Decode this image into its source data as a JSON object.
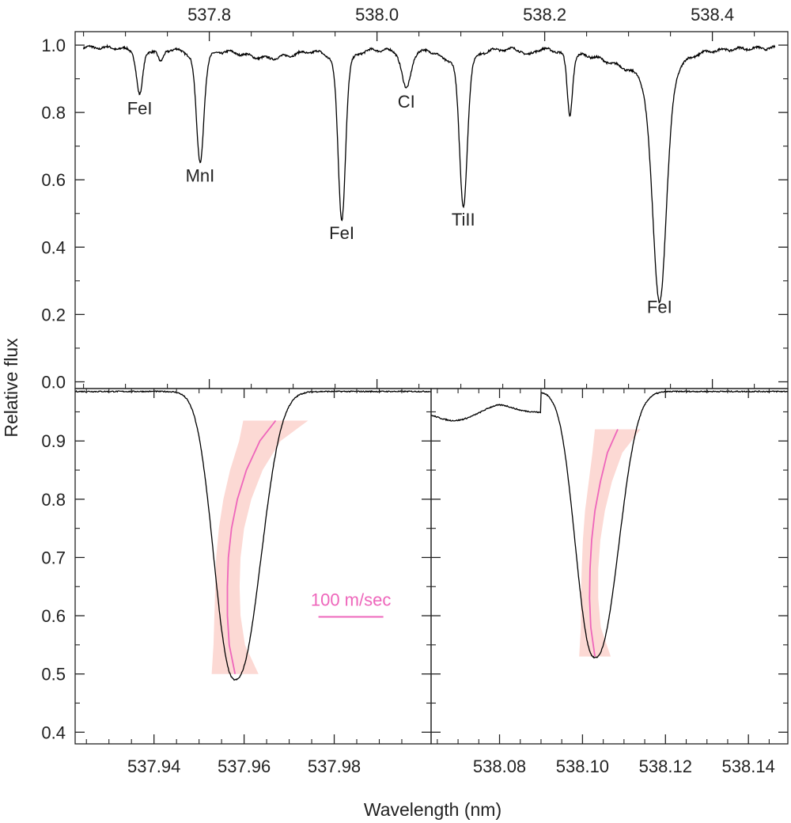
{
  "figure": {
    "ylabel": "Relative flux",
    "xlabel": "Wavelength (nm)"
  },
  "colors": {
    "spectrum": "#000000",
    "bisector": "#ee66bb",
    "bisector_band": "#fcd9d4",
    "axis": "#222222"
  },
  "chart_data": [
    {
      "type": "line",
      "panel": "top-overview",
      "xlim": [
        537.64,
        538.49
      ],
      "ylim": [
        -0.02,
        1.04
      ],
      "x_ticks": [
        "537.8",
        "538.0",
        "538.2",
        "538.4"
      ],
      "x_tick_values": [
        537.8,
        538.0,
        538.2,
        538.4
      ],
      "x_ticks_position": "top",
      "y_ticks": [
        "0.0",
        "0.2",
        "0.4",
        "0.6",
        "0.8",
        "1.0"
      ],
      "y_tick_values": [
        0.0,
        0.2,
        0.4,
        0.6,
        0.8,
        1.0
      ],
      "continuum": 1.0,
      "absorption_lines": [
        {
          "label": "FeI",
          "center": 537.717,
          "min_flux": 0.86,
          "width": 0.0035
        },
        {
          "label": "",
          "center": 537.742,
          "min_flux": 0.96,
          "width": 0.003
        },
        {
          "label": "MnI",
          "center": 537.789,
          "min_flux": 0.66,
          "width": 0.0042
        },
        {
          "label": "FeI",
          "center": 537.958,
          "min_flux": 0.49,
          "width": 0.0042
        },
        {
          "label": "CI",
          "center": 538.035,
          "min_flux": 0.88,
          "width": 0.005
        },
        {
          "label": "",
          "center": 538.08,
          "min_flux": 0.98,
          "width": 0.006
        },
        {
          "label": "TiII",
          "center": 538.103,
          "min_flux": 0.53,
          "width": 0.0045
        },
        {
          "label": "",
          "center": 538.18,
          "min_flux": 0.98,
          "width": 0.005
        },
        {
          "label": "",
          "center": 538.23,
          "min_flux": 0.81,
          "width": 0.003
        },
        {
          "label": "FeI",
          "center": 538.337,
          "min_flux": 0.27,
          "width": 0.008
        }
      ]
    },
    {
      "type": "line",
      "panel": "bottom-left-zoom",
      "xlim": [
        537.9225,
        538.0015
      ],
      "ylim": [
        0.38,
        0.99
      ],
      "x_ticks": [
        "537.94",
        "537.96",
        "537.98"
      ],
      "x_tick_values": [
        537.94,
        537.96,
        537.98
      ],
      "y_ticks": [
        "0.4",
        "0.5",
        "0.6",
        "0.7",
        "0.8",
        "0.9"
      ],
      "y_tick_values": [
        0.4,
        0.5,
        0.6,
        0.7,
        0.8,
        0.9
      ],
      "line": {
        "center": 537.958,
        "min_flux": 0.49,
        "continuum": 0.985
      },
      "bisector": {
        "flux": [
          0.5,
          0.55,
          0.6,
          0.65,
          0.7,
          0.75,
          0.8,
          0.85,
          0.9,
          0.935
        ],
        "wavelength": [
          537.958,
          537.9567,
          537.9563,
          537.9563,
          537.9565,
          537.9572,
          537.9585,
          537.9605,
          537.9635,
          537.967
        ],
        "band_halfwidth": [
          0.0052,
          0.0035,
          0.0029,
          0.0027,
          0.0027,
          0.0028,
          0.0031,
          0.0036,
          0.0046,
          0.0072
        ]
      },
      "scale_bar": {
        "label": "100 m/sec",
        "x_from": 537.9765,
        "x_to": 537.9909,
        "y": 0.598
      }
    },
    {
      "type": "line",
      "panel": "bottom-right-zoom",
      "xlim": [
        538.0635,
        538.1495
      ],
      "ylim": [
        0.38,
        0.99
      ],
      "x_ticks": [
        "538.08",
        "538.10",
        "538.12",
        "538.14"
      ],
      "x_tick_values": [
        538.08,
        538.1,
        538.12,
        538.14
      ],
      "line": {
        "center": 538.103,
        "min_flux": 0.528,
        "continuum": 0.985
      },
      "bisector": {
        "flux": [
          0.53,
          0.58,
          0.63,
          0.68,
          0.73,
          0.78,
          0.83,
          0.88,
          0.92
        ],
        "wavelength": [
          538.103,
          538.102,
          538.1017,
          538.1018,
          538.1022,
          538.103,
          538.1043,
          538.106,
          538.1085
        ],
        "band_halfwidth": [
          0.0038,
          0.0024,
          0.0021,
          0.002,
          0.0021,
          0.0024,
          0.0028,
          0.0036,
          0.0055
        ]
      }
    }
  ]
}
